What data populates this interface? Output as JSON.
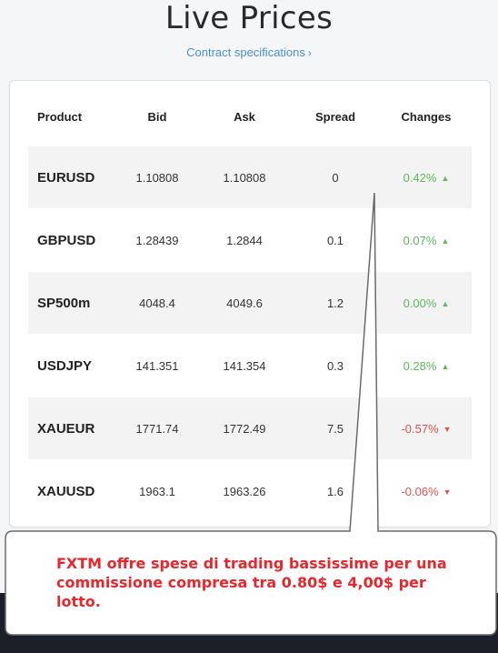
{
  "header": {
    "title": "Live Prices",
    "specs_link": "Contract specifications",
    "specs_chevron": "›"
  },
  "table": {
    "columns": [
      "Product",
      "Bid",
      "Ask",
      "Spread",
      "Changes"
    ],
    "rows": [
      {
        "product": "EURUSD",
        "bid": "1.10808",
        "ask": "1.10808",
        "spread": "0",
        "change": "0.42%",
        "direction": "up"
      },
      {
        "product": "GBPUSD",
        "bid": "1.28439",
        "ask": "1.2844",
        "spread": "0.1",
        "change": "0.07%",
        "direction": "up"
      },
      {
        "product": "SP500m",
        "bid": "4048.4",
        "ask": "4049.6",
        "spread": "1.2",
        "change": "0.00%",
        "direction": "up"
      },
      {
        "product": "USDJPY",
        "bid": "141.351",
        "ask": "141.354",
        "spread": "0.3",
        "change": "0.28%",
        "direction": "up"
      },
      {
        "product": "XAUEUR",
        "bid": "1771.74",
        "ask": "1772.49",
        "spread": "7.5",
        "change": "-0.57%",
        "direction": "down"
      },
      {
        "product": "XAUUSD",
        "bid": "1963.1",
        "ask": "1963.26",
        "spread": "1.6",
        "change": "-0.06%",
        "direction": "down"
      }
    ],
    "up_arrow": "▲",
    "down_arrow": "▼"
  },
  "callout": {
    "line1": "FXTM offre spese di trading bassissime per una",
    "line2": "commissione compresa tra 0.80$ e 4,00$ per lotto."
  },
  "colors": {
    "positive": "#5cb85c",
    "negative": "#d9534f",
    "callout_text": "#e8262b",
    "link": "#4a90c8"
  }
}
